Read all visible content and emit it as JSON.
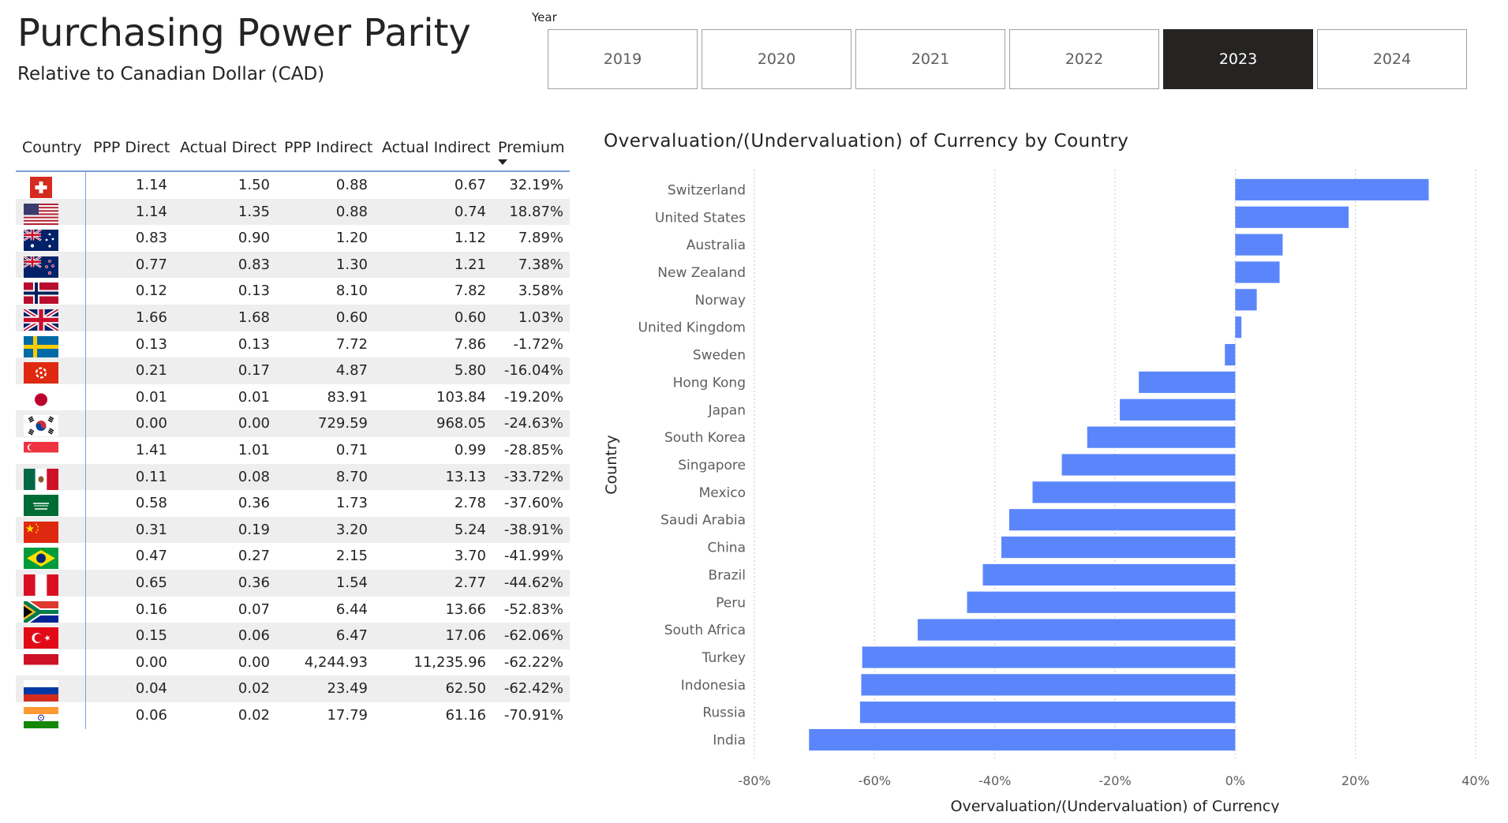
{
  "header": {
    "title": "Purchasing Power Parity",
    "subtitle": "Relative to Canadian Dollar (CAD)"
  },
  "slicer": {
    "label": "Year",
    "years": [
      "2019",
      "2020",
      "2021",
      "2022",
      "2023",
      "2024"
    ],
    "selected": "2023"
  },
  "table": {
    "columns": [
      "Country",
      "PPP Direct",
      "Actual Direct",
      "PPP Indirect",
      "Actual Indirect",
      "Premium"
    ],
    "sort_column": "Premium",
    "rows": [
      {
        "flag": "switzerland-flag-icon",
        "ppp_direct": "1.14",
        "actual_direct": "1.50",
        "ppp_indirect": "0.88",
        "actual_indirect": "0.67",
        "premium": "32.19%"
      },
      {
        "flag": "united-states-flag-icon",
        "ppp_direct": "1.14",
        "actual_direct": "1.35",
        "ppp_indirect": "0.88",
        "actual_indirect": "0.74",
        "premium": "18.87%"
      },
      {
        "flag": "australia-flag-icon",
        "ppp_direct": "0.83",
        "actual_direct": "0.90",
        "ppp_indirect": "1.20",
        "actual_indirect": "1.12",
        "premium": "7.89%"
      },
      {
        "flag": "new-zealand-flag-icon",
        "ppp_direct": "0.77",
        "actual_direct": "0.83",
        "ppp_indirect": "1.30",
        "actual_indirect": "1.21",
        "premium": "7.38%"
      },
      {
        "flag": "norway-flag-icon",
        "ppp_direct": "0.12",
        "actual_direct": "0.13",
        "ppp_indirect": "8.10",
        "actual_indirect": "7.82",
        "premium": "3.58%"
      },
      {
        "flag": "united-kingdom-flag-icon",
        "ppp_direct": "1.66",
        "actual_direct": "1.68",
        "ppp_indirect": "0.60",
        "actual_indirect": "0.60",
        "premium": "1.03%"
      },
      {
        "flag": "sweden-flag-icon",
        "ppp_direct": "0.13",
        "actual_direct": "0.13",
        "ppp_indirect": "7.72",
        "actual_indirect": "7.86",
        "premium": "-1.72%"
      },
      {
        "flag": "hong-kong-flag-icon",
        "ppp_direct": "0.21",
        "actual_direct": "0.17",
        "ppp_indirect": "4.87",
        "actual_indirect": "5.80",
        "premium": "-16.04%"
      },
      {
        "flag": "japan-flag-icon",
        "ppp_direct": "0.01",
        "actual_direct": "0.01",
        "ppp_indirect": "83.91",
        "actual_indirect": "103.84",
        "premium": "-19.20%"
      },
      {
        "flag": "south-korea-flag-icon",
        "ppp_direct": "0.00",
        "actual_direct": "0.00",
        "ppp_indirect": "729.59",
        "actual_indirect": "968.05",
        "premium": "-24.63%"
      },
      {
        "flag": "singapore-flag-icon",
        "ppp_direct": "1.41",
        "actual_direct": "1.01",
        "ppp_indirect": "0.71",
        "actual_indirect": "0.99",
        "premium": "-28.85%"
      },
      {
        "flag": "mexico-flag-icon",
        "ppp_direct": "0.11",
        "actual_direct": "0.08",
        "ppp_indirect": "8.70",
        "actual_indirect": "13.13",
        "premium": "-33.72%"
      },
      {
        "flag": "saudi-arabia-flag-icon",
        "ppp_direct": "0.58",
        "actual_direct": "0.36",
        "ppp_indirect": "1.73",
        "actual_indirect": "2.78",
        "premium": "-37.60%"
      },
      {
        "flag": "china-flag-icon",
        "ppp_direct": "0.31",
        "actual_direct": "0.19",
        "ppp_indirect": "3.20",
        "actual_indirect": "5.24",
        "premium": "-38.91%"
      },
      {
        "flag": "brazil-flag-icon",
        "ppp_direct": "0.47",
        "actual_direct": "0.27",
        "ppp_indirect": "2.15",
        "actual_indirect": "3.70",
        "premium": "-41.99%"
      },
      {
        "flag": "peru-flag-icon",
        "ppp_direct": "0.65",
        "actual_direct": "0.36",
        "ppp_indirect": "1.54",
        "actual_indirect": "2.77",
        "premium": "-44.62%"
      },
      {
        "flag": "south-africa-flag-icon",
        "ppp_direct": "0.16",
        "actual_direct": "0.07",
        "ppp_indirect": "6.44",
        "actual_indirect": "13.66",
        "premium": "-52.83%"
      },
      {
        "flag": "turkey-flag-icon",
        "ppp_direct": "0.15",
        "actual_direct": "0.06",
        "ppp_indirect": "6.47",
        "actual_indirect": "17.06",
        "premium": "-62.06%"
      },
      {
        "flag": "indonesia-flag-icon",
        "ppp_direct": "0.00",
        "actual_direct": "0.00",
        "ppp_indirect": "4,244.93",
        "actual_indirect": "11,235.96",
        "premium": "-62.22%"
      },
      {
        "flag": "russia-flag-icon",
        "ppp_direct": "0.04",
        "actual_direct": "0.02",
        "ppp_indirect": "23.49",
        "actual_indirect": "62.50",
        "premium": "-62.42%"
      },
      {
        "flag": "india-flag-icon",
        "ppp_direct": "0.06",
        "actual_direct": "0.02",
        "ppp_indirect": "17.79",
        "actual_indirect": "61.16",
        "premium": "-70.91%"
      }
    ]
  },
  "chart_data": {
    "type": "bar",
    "orientation": "horizontal",
    "title": "Overvaluation/(Undervaluation) of Currency by Country",
    "xlabel": "Overvaluation/(Undervaluation) of Currency",
    "ylabel": "Country",
    "categories": [
      "Switzerland",
      "United States",
      "Australia",
      "New Zealand",
      "Norway",
      "United Kingdom",
      "Sweden",
      "Hong Kong",
      "Japan",
      "South Korea",
      "Singapore",
      "Mexico",
      "Saudi Arabia",
      "China",
      "Brazil",
      "Peru",
      "South Africa",
      "Turkey",
      "Indonesia",
      "Russia",
      "India"
    ],
    "values": [
      32.19,
      18.87,
      7.89,
      7.38,
      3.58,
      1.03,
      -1.72,
      -16.04,
      -19.2,
      -24.63,
      -28.85,
      -33.72,
      -37.6,
      -38.91,
      -41.99,
      -44.62,
      -52.83,
      -62.06,
      -62.22,
      -62.42,
      -70.91
    ],
    "xlim": [
      -80,
      40
    ],
    "xticks": [
      "-80%",
      "-60%",
      "-40%",
      "-20%",
      "0%",
      "20%",
      "40%"
    ],
    "grid": true,
    "bar_color": "#5b86fb"
  }
}
